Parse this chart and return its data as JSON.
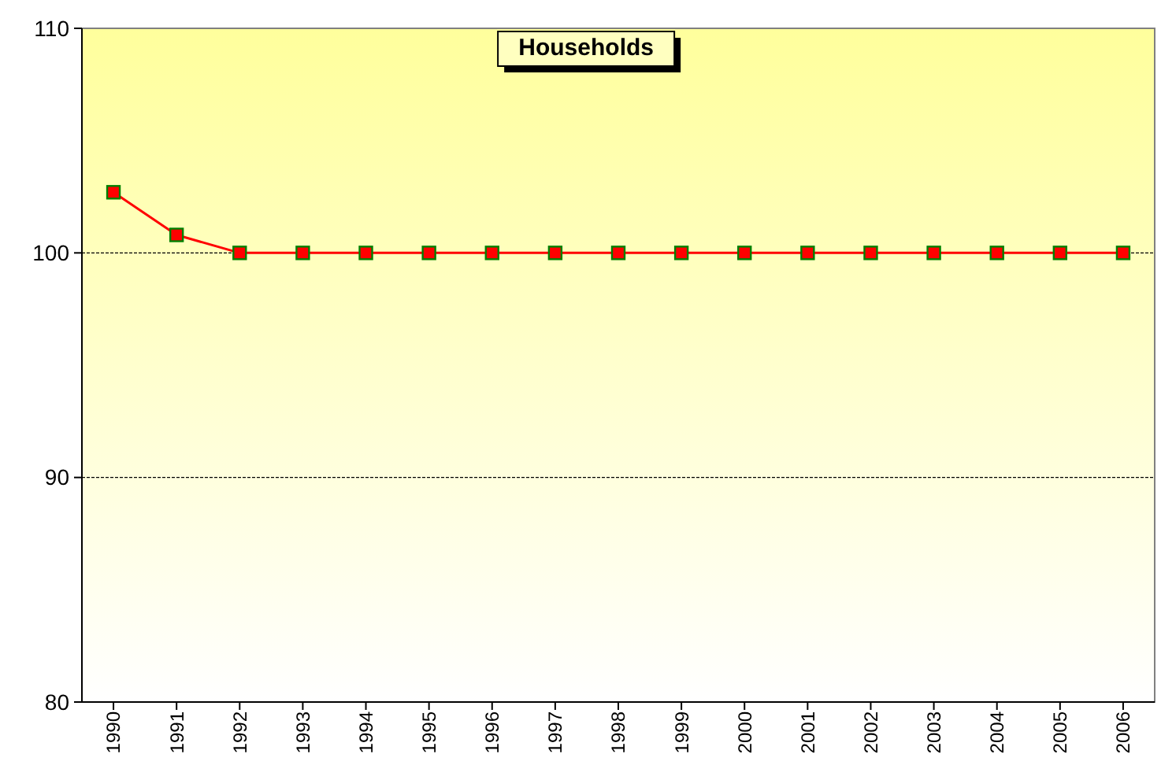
{
  "chart_data": {
    "type": "line",
    "title": "Households",
    "categories": [
      "1990",
      "1991",
      "1992",
      "1993",
      "1994",
      "1995",
      "1996",
      "1997",
      "1998",
      "1999",
      "2000",
      "2001",
      "2002",
      "2003",
      "2004",
      "2005",
      "2006"
    ],
    "series": [
      {
        "color": "#ff0000",
        "values": [
          102.7,
          100.8,
          100,
          100,
          100,
          100,
          100,
          100,
          100,
          100,
          100,
          100,
          100,
          100,
          100,
          100,
          100
        ]
      }
    ],
    "ylim": [
      80,
      110
    ],
    "yticks": [
      80,
      90,
      100,
      110
    ],
    "grid": "y",
    "marker": "square",
    "line_style": "solid"
  }
}
